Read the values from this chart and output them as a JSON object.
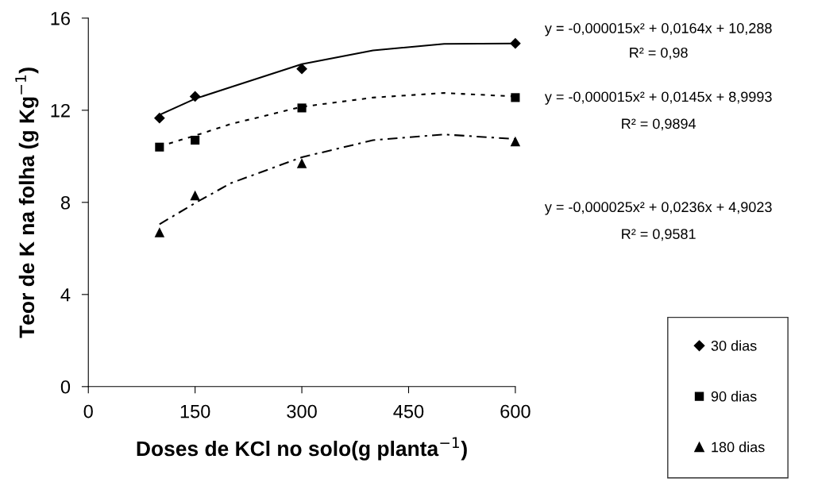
{
  "chart_data": {
    "type": "scatter",
    "xlabel": "Doses de KCl no solo(g planta$^{−1}$)",
    "ylabel": "Teor de K na folha (g Kg$^{−1}$)",
    "xlim": [
      0,
      600
    ],
    "xticks": [
      0,
      150,
      300,
      450,
      600
    ],
    "ylim": [
      0,
      16
    ],
    "yticks": [
      0,
      4,
      8,
      12,
      16
    ],
    "grid": false,
    "legend": "bottom right",
    "series": [
      {
        "type": "line",
        "x": [
          100,
          150,
          200,
          300,
          400,
          500,
          600
        ],
        "values": [
          11.8,
          12.5,
          13.0,
          14.0,
          14.6,
          14.88,
          14.9
        ],
        "color": "#000000",
        "line_style": "solid",
        "marker": "none"
      },
      {
        "type": "line",
        "x": [
          100,
          150,
          200,
          300,
          400,
          500,
          600
        ],
        "values": [
          10.43,
          10.9,
          11.4,
          12.15,
          12.55,
          12.75,
          12.6
        ],
        "color": "#000000",
        "line_style": "dotted",
        "marker": "none"
      },
      {
        "type": "line",
        "x": [
          100,
          150,
          200,
          300,
          400,
          500,
          600
        ],
        "values": [
          7.05,
          7.97,
          8.83,
          9.96,
          10.7,
          10.95,
          10.75
        ],
        "color": "#000000",
        "line_style": "dashed",
        "marker": "none"
      },
      {
        "name": "30 dias",
        "x": [
          100,
          150,
          300,
          600
        ],
        "values": [
          11.66,
          12.6,
          13.8,
          14.9
        ],
        "color": "#000000",
        "marker": "diamond"
      },
      {
        "name": "90 dias",
        "x": [
          100,
          150,
          300,
          600
        ],
        "values": [
          10.4,
          10.7,
          12.1,
          12.55
        ],
        "color": "#000000",
        "marker": "square"
      },
      {
        "name": "180 dias",
        "x": [
          100,
          150,
          300,
          600
        ],
        "values": [
          6.7,
          8.3,
          9.7,
          10.65
        ],
        "color": "#000000",
        "marker": "triangle"
      }
    ],
    "annotations": [
      "y = -0,000015x² + 0,0164x + 10,288",
      "R² = 0,98",
      "y = -0,000015x² + 0,0145x + 8,9993",
      "R² = 0,9894",
      "y = -0,000025x² + 0,0236x + 4,9023",
      "R² = 0,9581"
    ]
  }
}
